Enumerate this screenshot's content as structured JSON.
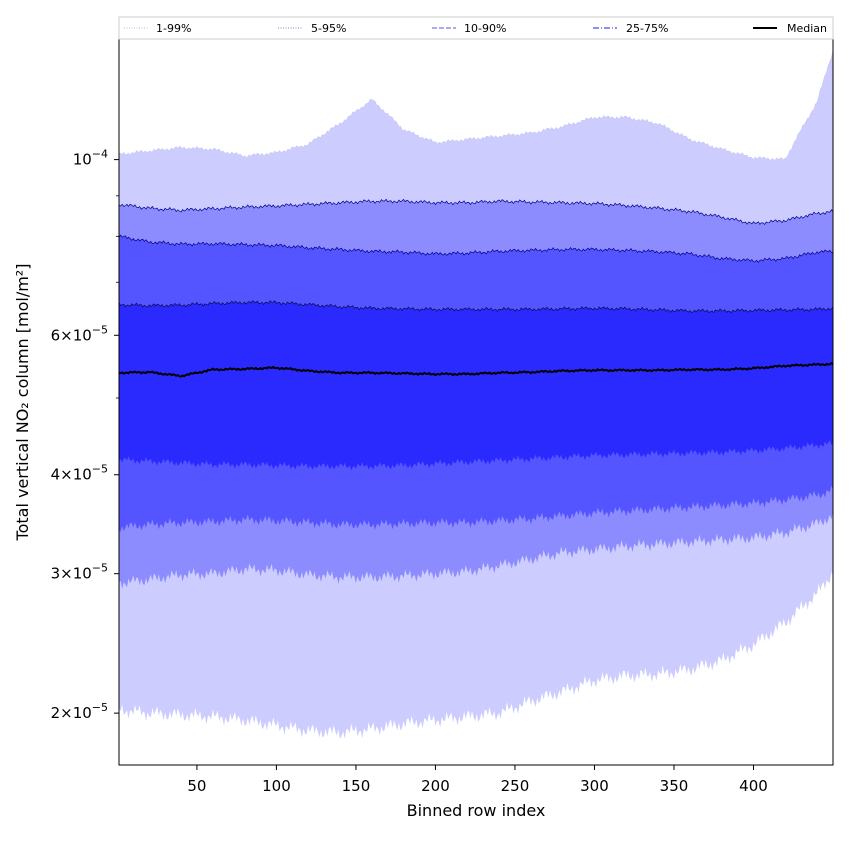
{
  "chart_data": {
    "type": "area",
    "title": "",
    "xlabel": "Binned row index",
    "ylabel": "Total vertical NO₂ column [mol/m²]",
    "xlim": [
      1,
      450
    ],
    "ylim": [
      1.72e-05,
      0.000142
    ],
    "yscale": "log",
    "grid": false,
    "legend_position": "top",
    "x_ticks": [
      50,
      100,
      150,
      200,
      250,
      300,
      350,
      400
    ],
    "x_tick_labels": [
      "50",
      "100",
      "150",
      "200",
      "250",
      "300",
      "350",
      "400"
    ],
    "y_ticks": [
      {
        "value": 2e-05,
        "mantissa": "2",
        "exponent": "−5"
      },
      {
        "value": 3e-05,
        "mantissa": "3",
        "exponent": "−5"
      },
      {
        "value": 4e-05,
        "mantissa": "4",
        "exponent": "−5"
      },
      {
        "value": 6e-05,
        "mantissa": "6",
        "exponent": "−5"
      },
      {
        "value": 0.0001,
        "mantissa": "",
        "exponent": "−4"
      }
    ],
    "x_sample": [
      1,
      20,
      40,
      60,
      80,
      100,
      120,
      140,
      160,
      180,
      200,
      220,
      240,
      260,
      280,
      300,
      320,
      340,
      360,
      380,
      400,
      420,
      440,
      450
    ],
    "series": [
      {
        "name": "1-99%",
        "line_color": "#c8c8f0",
        "fill_color": "#ccccff",
        "lower": [
          2.02e-05,
          2e-05,
          1.99e-05,
          1.98e-05,
          1.96e-05,
          1.93e-05,
          1.9e-05,
          1.89e-05,
          1.91e-05,
          1.94e-05,
          1.96e-05,
          1.98e-05,
          2e-05,
          2.07e-05,
          2.13e-05,
          2.2e-05,
          2.23e-05,
          2.24e-05,
          2.27e-05,
          2.33e-05,
          2.44e-05,
          2.6e-05,
          2.83e-05,
          3.01e-05
        ],
        "upper": [
          0.0001015,
          0.0001025,
          0.0001035,
          0.000103,
          0.000101,
          0.000102,
          0.0001045,
          0.000111,
          0.000119,
          0.000109,
          0.000105,
          0.000106,
          0.000107,
          0.000108,
          0.00011,
          0.000113,
          0.000113,
          0.000111,
          0.000106,
          0.000103,
          0.0001005,
          0.0001,
          0.000118,
          0.000137
        ]
      },
      {
        "name": "5-95%",
        "line_color": "#00008b",
        "fill_color": "#8c8cff",
        "lower": [
          2.92e-05,
          2.95e-05,
          2.99e-05,
          3e-05,
          3.04e-05,
          3.03e-05,
          2.99e-05,
          2.97e-05,
          2.97e-05,
          2.98e-05,
          3e-05,
          3.02e-05,
          3.07e-05,
          3.13e-05,
          3.19e-05,
          3.22e-05,
          3.25e-05,
          3.27e-05,
          3.29e-05,
          3.31e-05,
          3.33e-05,
          3.38e-05,
          3.47e-05,
          3.55e-05
        ],
        "upper": [
          8.78e-05,
          8.68e-05,
          8.63e-05,
          8.67e-05,
          8.71e-05,
          8.74e-05,
          8.78e-05,
          8.82e-05,
          8.86e-05,
          8.86e-05,
          8.82e-05,
          8.82e-05,
          8.86e-05,
          8.84e-05,
          8.82e-05,
          8.8e-05,
          8.75e-05,
          8.68e-05,
          8.6e-05,
          8.46e-05,
          8.3e-05,
          8.38e-05,
          8.55e-05,
          8.6e-05
        ]
      },
      {
        "name": "10-90%",
        "line_color": "#00008b",
        "fill_color": "#5555ff",
        "lower": [
          3.43e-05,
          3.46e-05,
          3.48e-05,
          3.49e-05,
          3.51e-05,
          3.5e-05,
          3.48e-05,
          3.46e-05,
          3.46e-05,
          3.47e-05,
          3.48e-05,
          3.48e-05,
          3.5e-05,
          3.52e-05,
          3.55e-05,
          3.58e-05,
          3.6e-05,
          3.62e-05,
          3.64e-05,
          3.66e-05,
          3.68e-05,
          3.72e-05,
          3.77e-05,
          3.82e-05
        ],
        "upper": [
          8e-05,
          7.87e-05,
          7.82e-05,
          7.83e-05,
          7.81e-05,
          7.79e-05,
          7.74e-05,
          7.7e-05,
          7.66e-05,
          7.64e-05,
          7.6e-05,
          7.62e-05,
          7.66e-05,
          7.68e-05,
          7.7e-05,
          7.7e-05,
          7.68e-05,
          7.65e-05,
          7.6e-05,
          7.5e-05,
          7.45e-05,
          7.5e-05,
          7.64e-05,
          7.66e-05
        ]
      },
      {
        "name": "25-75%",
        "line_color": "#0a0a50",
        "fill_color": "#2a2aff",
        "lower": [
          4.18e-05,
          4.16e-05,
          4.14e-05,
          4.12e-05,
          4.12e-05,
          4.11e-05,
          4.1e-05,
          4.1e-05,
          4.1e-05,
          4.11e-05,
          4.13e-05,
          4.15e-05,
          4.17e-05,
          4.19e-05,
          4.21e-05,
          4.23e-05,
          4.24e-05,
          4.25e-05,
          4.26e-05,
          4.27e-05,
          4.29e-05,
          4.32e-05,
          4.36e-05,
          4.38e-05
        ],
        "upper": [
          6.56e-05,
          6.54e-05,
          6.55e-05,
          6.58e-05,
          6.6e-05,
          6.6e-05,
          6.56e-05,
          6.52e-05,
          6.49e-05,
          6.48e-05,
          6.47e-05,
          6.47e-05,
          6.47e-05,
          6.47e-05,
          6.48e-05,
          6.49e-05,
          6.48e-05,
          6.46e-05,
          6.44e-05,
          6.44e-05,
          6.45e-05,
          6.46e-05,
          6.47e-05,
          6.49e-05
        ]
      },
      {
        "name": "Median",
        "line_color": "#000000",
        "values": [
          5.38e-05,
          5.39e-05,
          5.33e-05,
          5.43e-05,
          5.44e-05,
          5.46e-05,
          5.41e-05,
          5.38e-05,
          5.38e-05,
          5.37e-05,
          5.36e-05,
          5.36e-05,
          5.38e-05,
          5.39e-05,
          5.41e-05,
          5.42e-05,
          5.42e-05,
          5.42e-05,
          5.43e-05,
          5.43e-05,
          5.45e-05,
          5.49e-05,
          5.51e-05,
          5.52e-05
        ]
      }
    ],
    "legend": [
      {
        "label": "1-99%",
        "color": "#c8c8f0",
        "style": "dotted"
      },
      {
        "label": "5-95%",
        "color": "#9a9ad8",
        "style": "dotted"
      },
      {
        "label": "10-90%",
        "color": "#7a7aef",
        "style": "dashed"
      },
      {
        "label": "25-75%",
        "color": "#4a4af0",
        "style": "dashdot"
      },
      {
        "label": "Median",
        "color": "#000000",
        "style": "solid"
      }
    ]
  }
}
